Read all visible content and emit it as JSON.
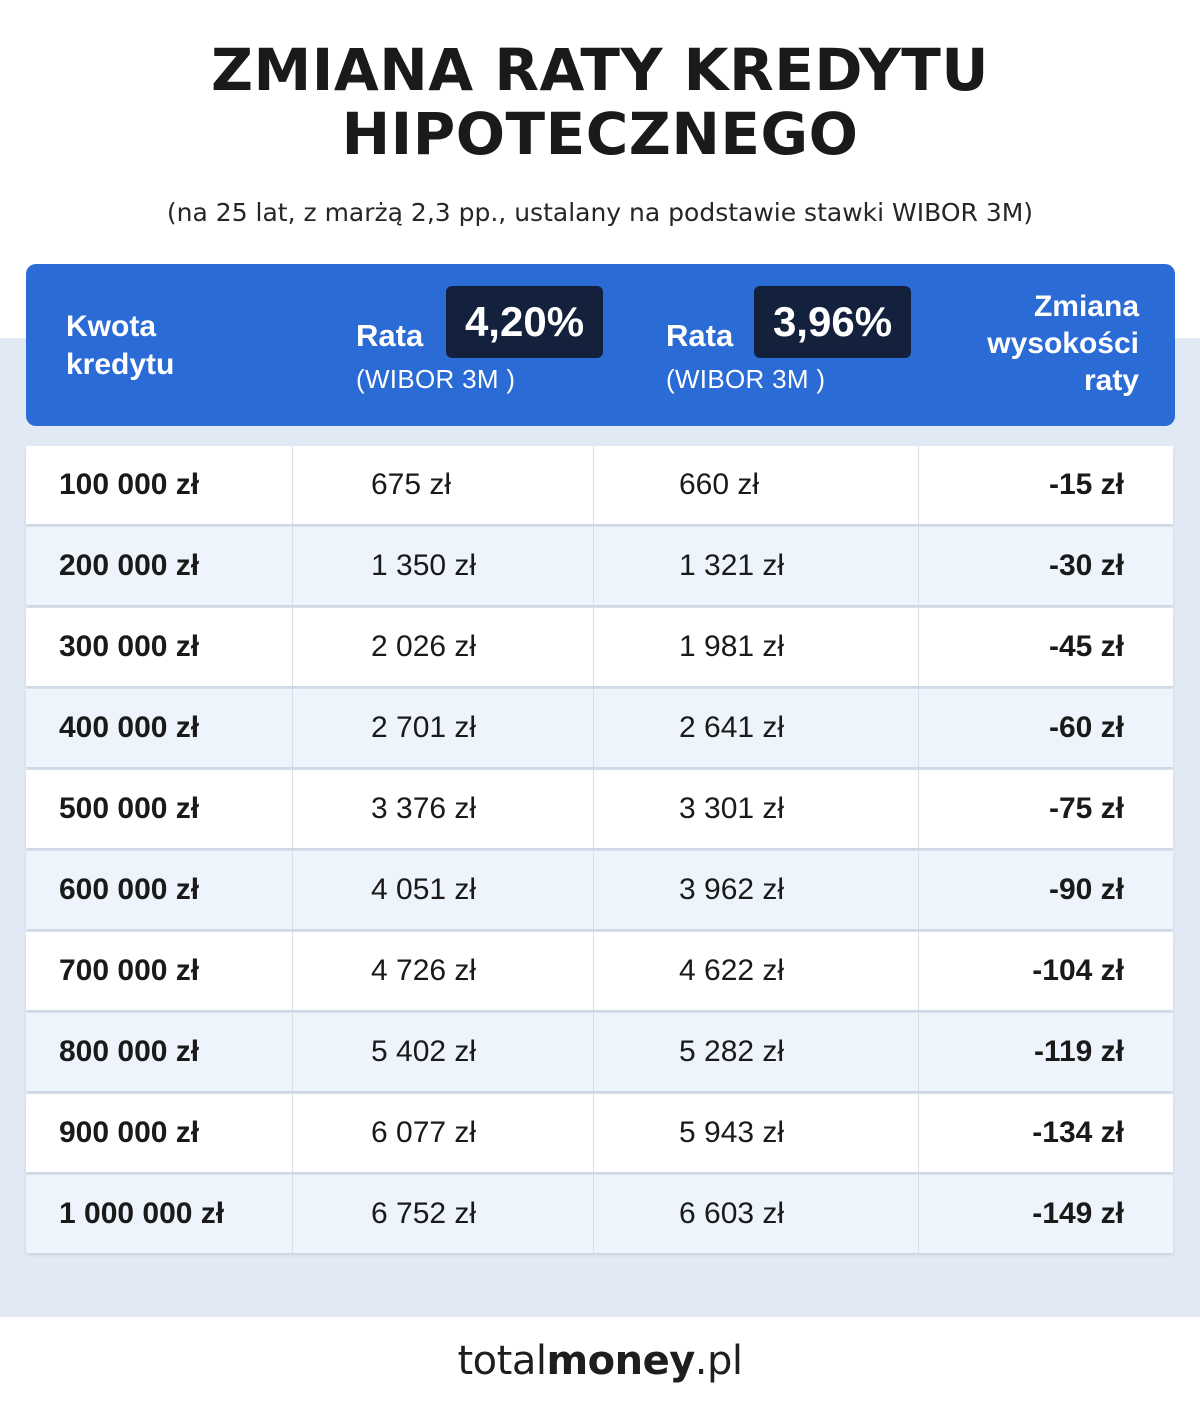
{
  "title": {
    "line1": "ZMIANA RATY KREDYTU",
    "line2": "HIPOTECZNEGO"
  },
  "subtitle": "(na 25 lat, z marżą 2,3 pp., ustalany na podstawie stawki WIBOR 3M)",
  "header": {
    "col1": {
      "line1": "Kwota",
      "line2": "kredytu"
    },
    "col2": {
      "label": "Rata",
      "badge": "4,20%",
      "sub": "(WIBOR 3M )"
    },
    "col3": {
      "label": "Rata",
      "badge": "3,96%",
      "sub": "(WIBOR 3M )"
    },
    "col4": {
      "line1": "Zmiana",
      "line2": "wysokości",
      "line3": "raty"
    }
  },
  "rows": [
    {
      "kwota": "100 000 zł",
      "rata1": "675 zł",
      "rata2": "660 zł",
      "zmiana": "-15 zł"
    },
    {
      "kwota": "200 000 zł",
      "rata1": "1 350 zł",
      "rata2": "1 321 zł",
      "zmiana": "-30 zł"
    },
    {
      "kwota": "300 000 zł",
      "rata1": "2 026 zł",
      "rata2": "1 981 zł",
      "zmiana": "-45 zł"
    },
    {
      "kwota": "400 000 zł",
      "rata1": "2 701 zł",
      "rata2": "2 641 zł",
      "zmiana": "-60 zł"
    },
    {
      "kwota": "500 000 zł",
      "rata1": "3 376 zł",
      "rata2": "3 301 zł",
      "zmiana": "-75 zł"
    },
    {
      "kwota": "600 000 zł",
      "rata1": "4 051 zł",
      "rata2": "3 962 zł",
      "zmiana": "-90 zł"
    },
    {
      "kwota": "700 000 zł",
      "rata1": "4 726 zł",
      "rata2": "4 622 zł",
      "zmiana": "-104 zł"
    },
    {
      "kwota": "800 000 zł",
      "rata1": "5 402 zł",
      "rata2": "5 282 zł",
      "zmiana": "-119 zł"
    },
    {
      "kwota": "900 000 zł",
      "rata1": "6 077 zł",
      "rata2": "5 943 zł",
      "zmiana": "-134 zł"
    },
    {
      "kwota": "1 000 000 zł",
      "rata1": "6 752 zł",
      "rata2": "6 603 zł",
      "zmiana": "-149 zł"
    }
  ],
  "logo": {
    "part1": "total",
    "part2": "money",
    "part3": ".pl"
  },
  "colors": {
    "header_blue": "#2b6bd6",
    "badge_navy": "#14213d",
    "band": "#e1e9f4"
  }
}
